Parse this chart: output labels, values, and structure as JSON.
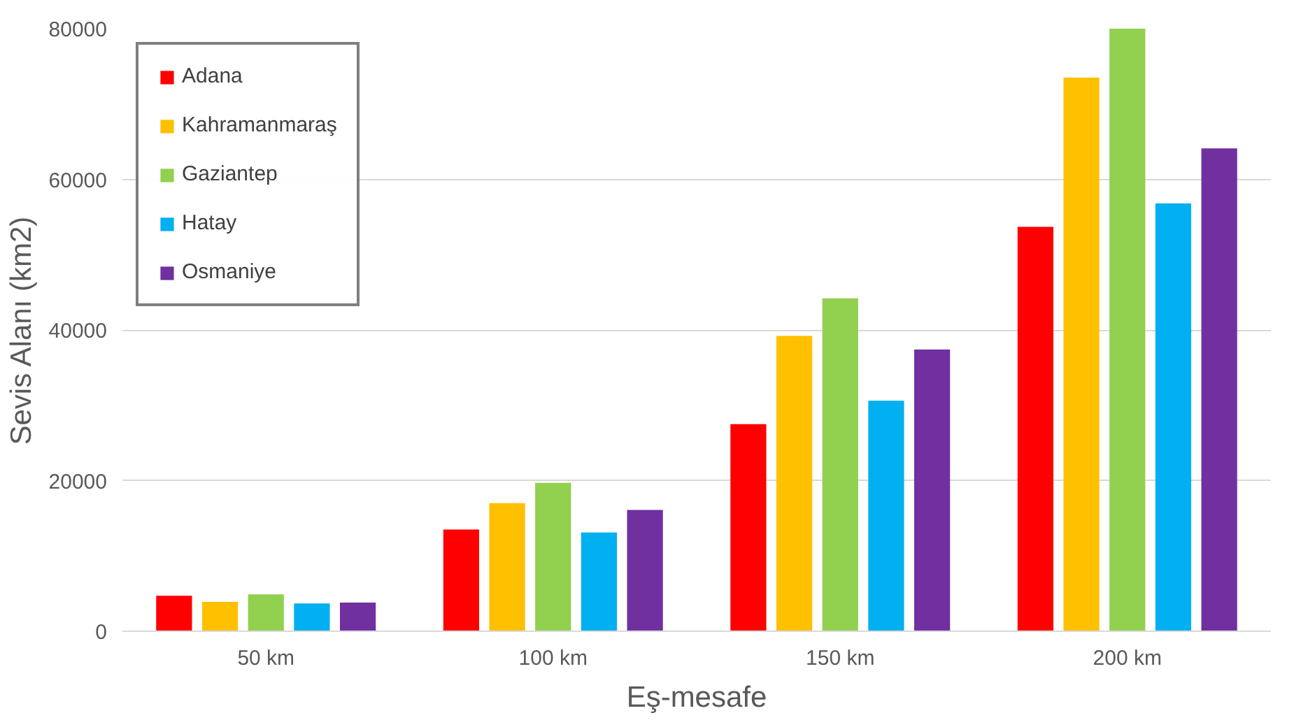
{
  "chart_data": {
    "type": "bar",
    "xlabel": "Eş-mesafe",
    "ylabel": "Sevis Alanı (km2)",
    "categories": [
      "50 km",
      "100 km",
      "150 km",
      "200 km"
    ],
    "series": [
      {
        "name": "Adana",
        "color": "#ff0000",
        "values": [
          4700,
          13500,
          27500,
          53700
        ]
      },
      {
        "name": "Kahramanmaraş",
        "color": "#ffc000",
        "values": [
          3900,
          17000,
          39200,
          73500
        ]
      },
      {
        "name": "Gaziantep",
        "color": "#92d050",
        "values": [
          4900,
          19700,
          44200,
          80000
        ]
      },
      {
        "name": "Hatay",
        "color": "#00b0f0",
        "values": [
          3700,
          13100,
          30600,
          56800
        ]
      },
      {
        "name": "Osmaniye",
        "color": "#7030a0",
        "values": [
          3800,
          16100,
          37400,
          64100
        ]
      }
    ],
    "ylim": [
      0,
      80000
    ],
    "yticks": [
      0,
      20000,
      40000,
      60000,
      80000
    ],
    "grid": "y",
    "legend": "top left"
  }
}
